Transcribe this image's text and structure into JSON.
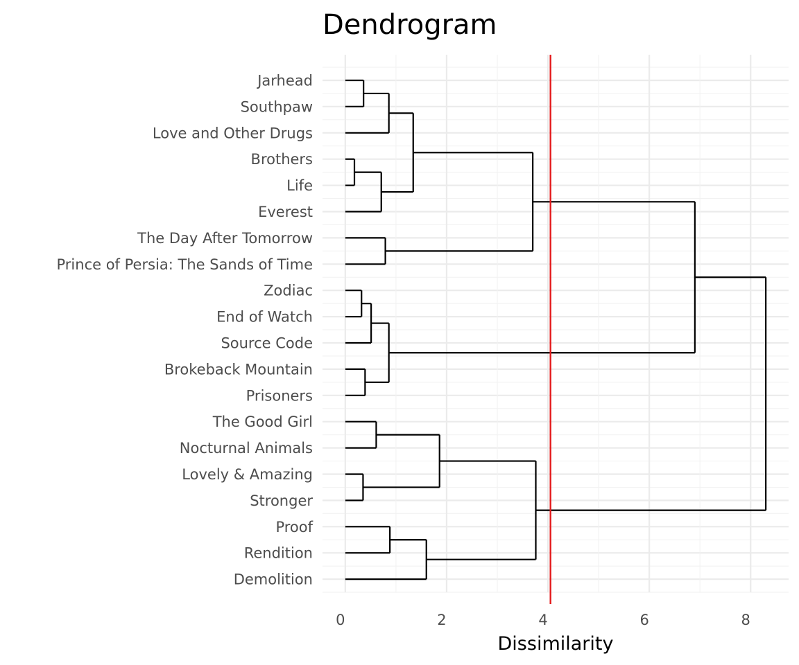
{
  "chart_data": {
    "type": "dendrogram",
    "title": "Dendrogram",
    "xlabel": "Dissimilarity",
    "ylabel": "",
    "xlim": [
      -0.45,
      8.75
    ],
    "xticks": [
      0,
      2,
      4,
      6,
      8
    ],
    "grid": true,
    "leaves": [
      "Jarhead",
      "Southpaw",
      "Love and Other Drugs",
      "Brothers",
      "Life",
      "Everest",
      "The Day After Tomorrow",
      "Prince of Persia: The Sands of Time",
      "Zodiac",
      "End of Watch",
      "Source Code",
      "Brokeback Mountain",
      "Prisoners",
      "The Good Girl",
      "Nocturnal Animals",
      "Lovely & Amazing",
      "Stronger",
      "Proof",
      "Rendition",
      "Demolition"
    ],
    "merges": [
      {
        "a": 0,
        "b": 1,
        "height": 0.36
      },
      {
        "a": 20,
        "b": 2,
        "height": 0.86
      },
      {
        "a": 3,
        "b": 4,
        "height": 0.18
      },
      {
        "a": 22,
        "b": 5,
        "height": 0.71
      },
      {
        "a": 21,
        "b": 23,
        "height": 1.34
      },
      {
        "a": 6,
        "b": 7,
        "height": 0.79
      },
      {
        "a": 24,
        "b": 25,
        "height": 3.7
      },
      {
        "a": 8,
        "b": 9,
        "height": 0.32
      },
      {
        "a": 27,
        "b": 10,
        "height": 0.51
      },
      {
        "a": 11,
        "b": 12,
        "height": 0.39
      },
      {
        "a": 28,
        "b": 29,
        "height": 0.86
      },
      {
        "a": 26,
        "b": 30,
        "height": 6.9
      },
      {
        "a": 13,
        "b": 14,
        "height": 0.61
      },
      {
        "a": 15,
        "b": 16,
        "height": 0.35
      },
      {
        "a": 32,
        "b": 33,
        "height": 1.86
      },
      {
        "a": 17,
        "b": 18,
        "height": 0.88
      },
      {
        "a": 35,
        "b": 19,
        "height": 1.6
      },
      {
        "a": 34,
        "b": 36,
        "height": 3.76
      },
      {
        "a": 31,
        "b": 37,
        "height": 8.3
      }
    ],
    "cut_height": 4.05,
    "colors": {
      "branch": "#000000",
      "cut_line": "#e41a1c",
      "grid_major": "#ebebeb",
      "grid_minor": "#f2f2f2",
      "label_text": "#4d4d4d"
    }
  }
}
